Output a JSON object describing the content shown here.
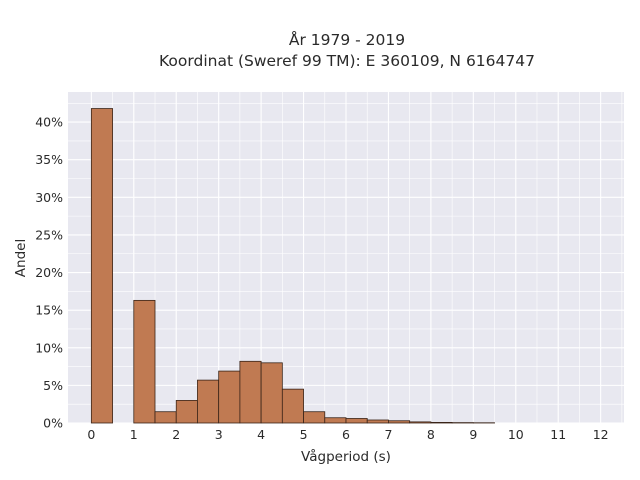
{
  "chart_data": {
    "type": "bar",
    "title_lines": [
      "År 1979 - 2019",
      "Koordinat (Sweref 99 TM): E 360109, N 6164747"
    ],
    "xlabel": "Vågperiod (s)",
    "ylabel": "Andel",
    "bin_width": 0.5,
    "x": [
      0,
      1,
      1.5,
      2,
      2.5,
      3,
      3.5,
      4,
      4.5,
      5,
      5.5,
      6,
      6.5,
      7,
      7.5,
      8,
      8.5,
      9
    ],
    "values": [
      41.8,
      16.3,
      1.5,
      3.0,
      5.7,
      6.9,
      8.2,
      8.0,
      4.5,
      1.5,
      0.7,
      0.6,
      0.4,
      0.3,
      0.15,
      0.08,
      0.05,
      0.03
    ],
    "xlim": [
      -0.55,
      12.55
    ],
    "ylim": [
      0,
      44
    ],
    "xticks": [
      0,
      1,
      2,
      3,
      4,
      5,
      6,
      7,
      8,
      9,
      10,
      11,
      12
    ],
    "yticks": [
      0,
      5,
      10,
      15,
      20,
      25,
      30,
      35,
      40
    ],
    "ytick_labels": [
      "0%",
      "5%",
      "10%",
      "15%",
      "20%",
      "25%",
      "30%",
      "35%",
      "40%"
    ],
    "grid": true,
    "colors": {
      "bar": "#c07a52",
      "edge": "#3a2418",
      "plot_bg": "#e8e8f0",
      "grid": "#ffffff"
    }
  }
}
